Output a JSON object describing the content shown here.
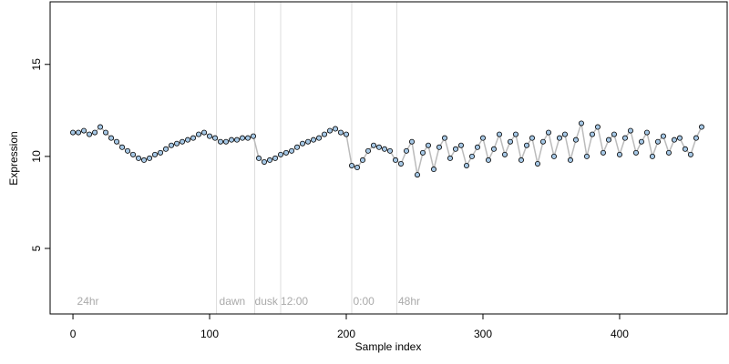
{
  "chart_data": {
    "type": "scatter",
    "x_label": "Sample index",
    "y_label": "Expression",
    "xlim": [
      -16.7,
      478.7
    ],
    "ylim": [
      1.44,
      18.4
    ],
    "xticks": [
      0,
      100,
      200,
      300,
      400
    ],
    "yticks": [
      5,
      10,
      15
    ],
    "vlines": [
      105,
      133,
      152,
      204,
      237
    ],
    "annotations": [
      {
        "text": "24hr",
        "x": 3
      },
      {
        "text": "dawn",
        "x": 107
      },
      {
        "text": "dusk",
        "x": 133
      },
      {
        "text": "12:00",
        "x": 152
      },
      {
        "text": "0:00",
        "x": 205
      },
      {
        "text": "48hr",
        "x": 238
      }
    ],
    "annotation_y": 2.1,
    "series": [
      {
        "name": "Expression",
        "color": "#a6c8e6",
        "x": [
          0,
          4,
          8,
          12,
          16,
          20,
          24,
          28,
          32,
          36,
          40,
          44,
          48,
          52,
          56,
          60,
          64,
          68,
          72,
          76,
          80,
          84,
          88,
          92,
          96,
          100,
          104,
          108,
          112,
          116,
          120,
          124,
          128,
          132,
          136,
          140,
          144,
          148,
          152,
          156,
          160,
          164,
          168,
          172,
          176,
          180,
          184,
          188,
          192,
          196,
          200,
          204,
          208,
          212,
          216,
          220,
          224,
          228,
          232,
          236,
          240,
          244,
          248,
          252,
          256,
          260,
          264,
          268,
          272,
          276,
          280,
          284,
          288,
          292,
          296,
          300,
          304,
          308,
          312,
          316,
          320,
          324,
          328,
          332,
          336,
          340,
          344,
          348,
          352,
          356,
          360,
          364,
          368,
          372,
          376,
          380,
          384,
          388,
          392,
          396,
          400,
          404,
          408,
          412,
          416,
          420,
          424,
          428,
          432,
          436,
          440,
          444,
          448,
          452,
          456,
          460
        ],
        "values": [
          11.3,
          11.3,
          11.4,
          11.2,
          11.3,
          11.6,
          11.3,
          11.0,
          10.8,
          10.5,
          10.3,
          10.1,
          9.9,
          9.8,
          9.9,
          10.1,
          10.2,
          10.4,
          10.6,
          10.7,
          10.8,
          10.9,
          11.0,
          11.2,
          11.3,
          11.1,
          11.0,
          10.8,
          10.8,
          10.9,
          10.9,
          11.0,
          11.0,
          11.1,
          9.9,
          9.7,
          9.8,
          9.9,
          10.1,
          10.2,
          10.3,
          10.5,
          10.7,
          10.8,
          10.9,
          11.0,
          11.2,
          11.4,
          11.5,
          11.3,
          11.2,
          9.5,
          9.4,
          9.8,
          10.3,
          10.6,
          10.5,
          10.4,
          10.3,
          9.8,
          9.6,
          10.3,
          10.8,
          9.0,
          10.2,
          10.6,
          9.3,
          10.5,
          11.0,
          9.9,
          10.4,
          10.6,
          9.5,
          10.0,
          10.5,
          11.0,
          9.8,
          10.4,
          11.2,
          10.1,
          10.8,
          11.2,
          9.8,
          10.6,
          11.0,
          9.6,
          10.8,
          11.3,
          10.0,
          11.0,
          11.2,
          9.8,
          10.9,
          11.8,
          10.0,
          11.2,
          11.6,
          10.2,
          10.9,
          11.2,
          10.1,
          11.0,
          11.4,
          10.2,
          10.8,
          11.3,
          10.0,
          10.8,
          11.1,
          10.2,
          10.9,
          11.0,
          10.4,
          10.1,
          11.0,
          11.6
        ]
      }
    ]
  }
}
